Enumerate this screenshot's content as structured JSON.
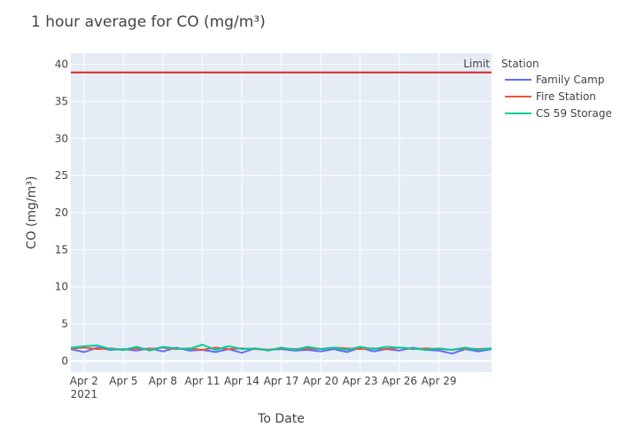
{
  "chart_data": {
    "type": "line",
    "title": "1 hour average for CO (mg/m³)",
    "xlabel": "To Date",
    "ylabel": "CO (mg/m³)",
    "ylim": [
      -1.5,
      41.5
    ],
    "xlim": [
      "2021-04-01",
      "2021-05-03"
    ],
    "yticks": [
      0,
      5,
      10,
      15,
      20,
      25,
      30,
      35,
      40
    ],
    "xticks": [
      {
        "date": "2021-04-02",
        "label": "Apr 2",
        "sublabel": "2021"
      },
      {
        "date": "2021-04-05",
        "label": "Apr 5"
      },
      {
        "date": "2021-04-08",
        "label": "Apr 8"
      },
      {
        "date": "2021-04-11",
        "label": "Apr 11"
      },
      {
        "date": "2021-04-14",
        "label": "Apr 14"
      },
      {
        "date": "2021-04-17",
        "label": "Apr 17"
      },
      {
        "date": "2021-04-20",
        "label": "Apr 20"
      },
      {
        "date": "2021-04-23",
        "label": "Apr 23"
      },
      {
        "date": "2021-04-26",
        "label": "Apr 26"
      },
      {
        "date": "2021-04-29",
        "label": "Apr 29"
      }
    ],
    "grid": true,
    "legend_position": "right",
    "legend_title": "Station",
    "x": [
      "2021-04-01",
      "2021-04-02",
      "2021-04-03",
      "2021-04-04",
      "2021-04-05",
      "2021-04-06",
      "2021-04-07",
      "2021-04-08",
      "2021-04-09",
      "2021-04-10",
      "2021-04-11",
      "2021-04-12",
      "2021-04-13",
      "2021-04-14",
      "2021-04-15",
      "2021-04-16",
      "2021-04-17",
      "2021-04-18",
      "2021-04-19",
      "2021-04-20",
      "2021-04-21",
      "2021-04-22",
      "2021-04-23",
      "2021-04-24",
      "2021-04-25",
      "2021-04-26",
      "2021-04-27",
      "2021-04-28",
      "2021-04-29",
      "2021-04-30",
      "2021-05-01",
      "2021-05-02",
      "2021-05-03"
    ],
    "series": [
      {
        "name": "Family Camp",
        "color": "#636efa",
        "values": [
          1.6,
          1.2,
          1.8,
          1.5,
          1.6,
          1.4,
          1.7,
          1.3,
          1.8,
          1.4,
          1.5,
          1.2,
          1.6,
          1.1,
          1.7,
          1.5,
          1.6,
          1.4,
          1.5,
          1.3,
          1.6,
          1.2,
          1.8,
          1.3,
          1.6,
          1.4,
          1.8,
          1.5,
          1.4,
          1.0,
          1.6,
          1.3,
          1.6
        ]
      },
      {
        "name": "Fire Station",
        "color": "#ef553b",
        "values": [
          1.7,
          1.8,
          1.6,
          1.7,
          1.5,
          1.7,
          1.6,
          1.8,
          1.6,
          1.7,
          1.5,
          1.8,
          1.6,
          1.7,
          1.6,
          1.5,
          1.7,
          1.6,
          1.7,
          1.6,
          1.8,
          1.7,
          1.6,
          1.7,
          1.6,
          1.8,
          1.6,
          1.7,
          1.6,
          1.5,
          1.7,
          1.6,
          1.7
        ]
      },
      {
        "name": "CS 59 Storage",
        "color": "#00cc96",
        "values": [
          1.8,
          2.0,
          2.1,
          1.6,
          1.5,
          1.9,
          1.4,
          1.9,
          1.7,
          1.6,
          2.2,
          1.5,
          2.0,
          1.6,
          1.7,
          1.4,
          1.8,
          1.5,
          1.9,
          1.6,
          1.8,
          1.5,
          1.9,
          1.6,
          1.9,
          1.8,
          1.7,
          1.5,
          1.7,
          1.5,
          1.8,
          1.5,
          1.7
        ]
      }
    ],
    "limit": {
      "label": "Limit",
      "value": 38.9,
      "color": "#d62728"
    }
  }
}
